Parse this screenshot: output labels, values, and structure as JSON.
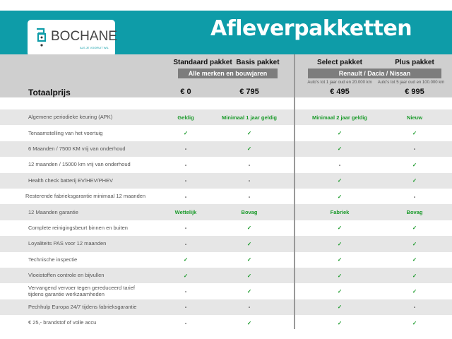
{
  "brand": {
    "name": "BOCHANE",
    "tagline": "ALS JE VOORUIT WIL",
    "teal": "#0e9ca8"
  },
  "title": "Afleverpakketten",
  "packages": [
    {
      "name": "Standaard pakket",
      "price": "€ 0"
    },
    {
      "name": "Basis pakket",
      "price": "€ 795"
    },
    {
      "name": "Select pakket",
      "price": "€ 495",
      "note": "Auto's tot 1 jaar oud en 20.000 km"
    },
    {
      "name": "Plus pakket",
      "price": "€ 995",
      "note": "Auto's tot 5 jaar oud en 100.000 km"
    }
  ],
  "groups": {
    "left": "Alle merken en bouwjaren",
    "right": "Renault / Dacia / Nissan"
  },
  "total_label": "Totaalprijs",
  "rows": [
    {
      "label": "Algemene periodieke keuring (APK)",
      "values": [
        "Geldig",
        "Minimaal 1 jaar geldig",
        "Minimaal 2 jaar geldig",
        "Nieuw"
      ]
    },
    {
      "label": "Tenaamstelling van het voertuig",
      "values": [
        "✓",
        "✓",
        "✓",
        "✓"
      ]
    },
    {
      "label": "6 Maanden / 7500 KM vrij van onderhoud",
      "values": [
        "-",
        "✓",
        "✓",
        "-"
      ]
    },
    {
      "label": "12 maanden / 15000 km vrij van onderhoud",
      "values": [
        "-",
        "-",
        "-",
        "✓"
      ]
    },
    {
      "label": "Health check batterij EV/HEV/PHEV",
      "values": [
        "-",
        "-",
        "✓",
        "✓"
      ]
    },
    {
      "label": "Resterende fabrieksgarantie minimaal 12 maanden",
      "values": [
        "-",
        "-",
        "✓",
        "-"
      ]
    },
    {
      "label": "12 Maanden  garantie",
      "values": [
        "Wettelijk",
        "Bovag",
        "Fabriek",
        "Bovag"
      ]
    },
    {
      "label": "Complete reinigingsbeurt binnen en buiten",
      "values": [
        "-",
        "✓",
        "✓",
        "✓"
      ]
    },
    {
      "label": "Loyaliteits PAS voor 12 maanden",
      "values": [
        "-",
        "✓",
        "✓",
        "✓"
      ]
    },
    {
      "label": "Technische inspectie",
      "values": [
        "✓",
        "✓",
        "✓",
        "✓"
      ]
    },
    {
      "label": "Vloeistoffen controle en bijvullen",
      "values": [
        "✓",
        "✓",
        "✓",
        "✓"
      ]
    },
    {
      "label": "Vervangend vervoer tegen gereduceerd tarief\ntijdens garantie werkzaamheden",
      "values": [
        "-",
        "✓",
        "✓",
        "✓"
      ]
    },
    {
      "label": "Pechhulp Europa 24/7 tijdens fabrieksgarantie",
      "values": [
        "-",
        "-",
        "✓",
        "-"
      ]
    },
    {
      "label": "€ 25,- brandstof of  volle accu",
      "values": [
        "-",
        "✓",
        "✓",
        "✓"
      ]
    }
  ]
}
